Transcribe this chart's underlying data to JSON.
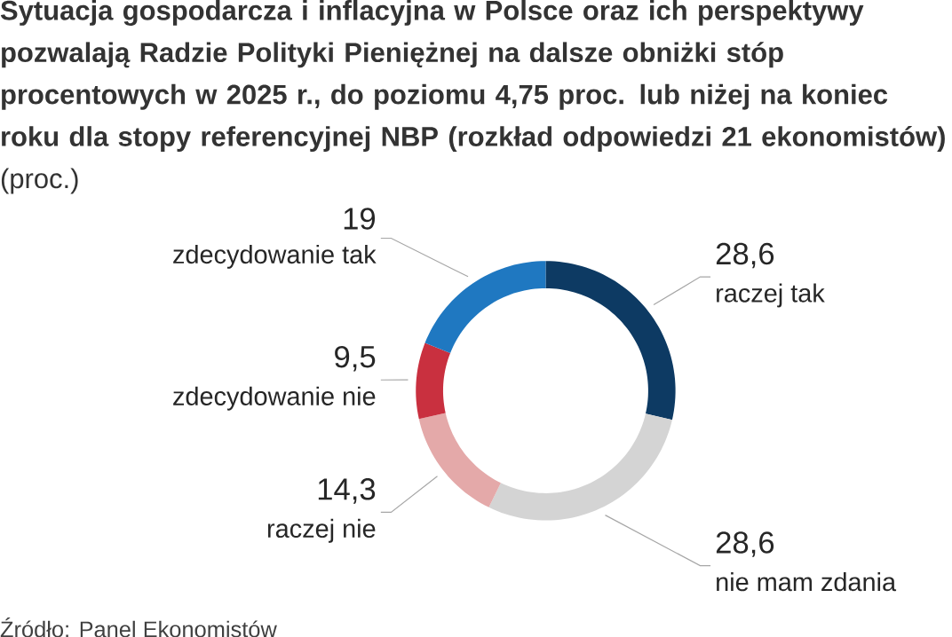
{
  "chart_data": {
    "type": "donut",
    "title": "**Sytuacja gospodarcza i inflacyjna w Polsce oraz ich perspektywy pozwalają Radzie Polityki Pieniężnej na dalsze obniżki stóp procentowych w 2025 r., do poziomu 4,75 proc. lub niżej na koniec roku dla stopy referencyjnej NBP (rozkład odpowiedzi 21 ekonomistów)** (proc.)",
    "categories": [
      "raczej tak",
      "nie mam zdania",
      "raczej nie",
      "zdecydowanie nie",
      "zdecydowanie tak"
    ],
    "values": [
      28.6,
      28.6,
      14.3,
      9.5,
      19
    ],
    "value_labels": [
      "28,6",
      "28,6",
      "14,3",
      "9,5",
      "19"
    ],
    "colors": [
      "#0d3a63",
      "#d4d4d4",
      "#e4a9a9",
      "#c9303f",
      "#1f78c1"
    ],
    "annotations": [
      "Źródło: Panel Ekonomistów"
    ]
  }
}
